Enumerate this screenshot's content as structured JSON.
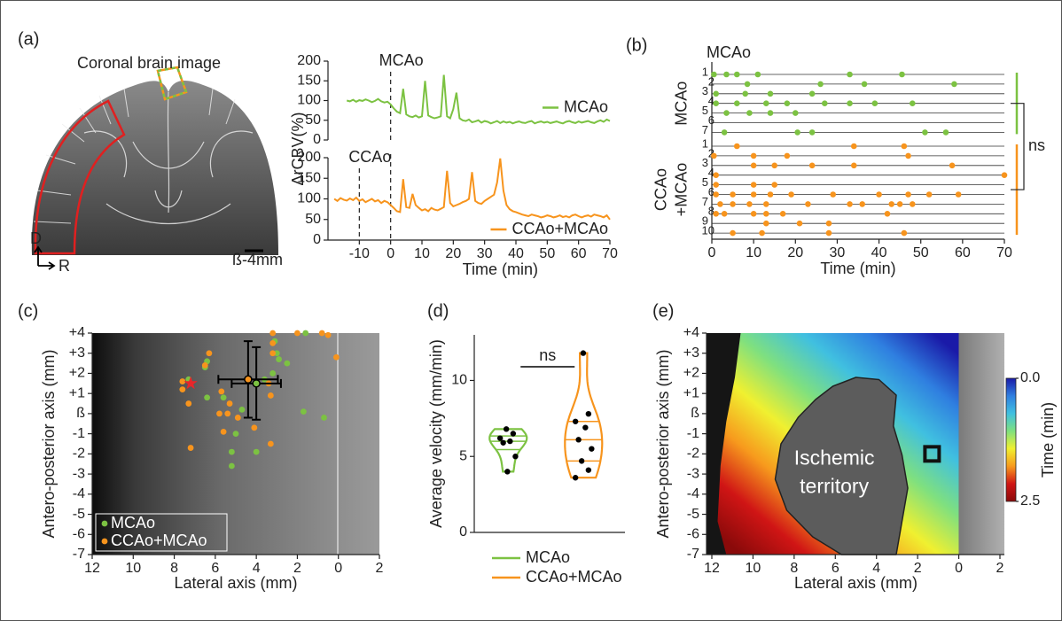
{
  "figure": {
    "panel_labels": [
      "(a)",
      "(b)",
      "(c)",
      "(d)",
      "(e)"
    ],
    "brain": {
      "title": "Coronal brain image",
      "dorsal": "D",
      "right": "R",
      "bregma": "ß-4mm"
    }
  },
  "chart_data": [
    {
      "type": "line",
      "y_label": "ΔrCBV(%)",
      "xlim": [
        -20,
        70
      ],
      "ylim": [
        0,
        200
      ],
      "yticks": [
        0,
        50,
        100,
        150,
        200
      ],
      "markers": [
        {
          "x": 0,
          "label": "MCAo"
        }
      ],
      "legend": "center right",
      "x": [
        -14,
        -13,
        -12,
        -11,
        -10,
        -9,
        -8,
        -7,
        -6,
        -5,
        -4,
        -3,
        -2,
        -1,
        0,
        1,
        2,
        3,
        4,
        5,
        6,
        7,
        8,
        9,
        10,
        11,
        12,
        13,
        14,
        15,
        16,
        17,
        18,
        19,
        20,
        21,
        22,
        23,
        24,
        25,
        26,
        27,
        28,
        29,
        30,
        31,
        32,
        33,
        34,
        35,
        36,
        37,
        38,
        39,
        40,
        41,
        42,
        43,
        44,
        45,
        46,
        47,
        48,
        49,
        50,
        51,
        52,
        53,
        54,
        55,
        56,
        57,
        58,
        59,
        60,
        61,
        62,
        63,
        64,
        65,
        66,
        67,
        68,
        69,
        70
      ],
      "series": [
        {
          "name": "MCAo",
          "color": "#7cc242",
          "values": [
            100,
            98,
            102,
            97,
            101,
            99,
            103,
            100,
            96,
            99,
            104,
            98,
            95,
            97,
            90,
            80,
            72,
            68,
            130,
            65,
            60,
            58,
            62,
            57,
            60,
            150,
            62,
            58,
            55,
            57,
            60,
            165,
            60,
            55,
            78,
            120,
            55,
            50,
            48,
            52,
            45,
            47,
            50,
            44,
            48,
            46,
            42,
            45,
            48,
            43,
            47,
            44,
            46,
            42,
            45,
            47,
            44,
            43,
            46,
            48,
            42,
            45,
            47,
            44,
            46,
            43,
            45,
            47,
            44,
            42,
            46,
            48,
            45,
            43,
            47,
            44,
            46,
            48,
            45,
            43,
            47,
            50,
            46,
            52,
            48
          ]
        }
      ]
    },
    {
      "type": "line",
      "x_label": "Time (min)",
      "xlim": [
        -20,
        70
      ],
      "xticks": [
        -10,
        0,
        10,
        20,
        30,
        40,
        50,
        60,
        70
      ],
      "ylim": [
        0,
        200
      ],
      "yticks": [
        0,
        50,
        100,
        150,
        200
      ],
      "markers": [
        {
          "x": -10,
          "label": "CCAo"
        },
        {
          "x": 0
        }
      ],
      "legend": "lower right",
      "x": [
        -18,
        -17,
        -16,
        -15,
        -14,
        -13,
        -12,
        -11,
        -10,
        -9,
        -8,
        -7,
        -6,
        -5,
        -4,
        -3,
        -2,
        -1,
        0,
        1,
        2,
        3,
        4,
        5,
        6,
        7,
        8,
        9,
        10,
        11,
        12,
        13,
        14,
        15,
        16,
        17,
        18,
        19,
        20,
        21,
        22,
        23,
        24,
        25,
        26,
        27,
        28,
        29,
        30,
        31,
        32,
        33,
        34,
        35,
        36,
        37,
        38,
        39,
        40,
        41,
        42,
        43,
        44,
        45,
        46,
        47,
        48,
        49,
        50,
        51,
        52,
        53,
        54,
        55,
        56,
        57,
        58,
        59,
        60,
        61,
        62,
        63,
        64,
        65,
        66,
        67,
        68,
        69,
        70
      ],
      "series": [
        {
          "name": "CCAo+MCAo",
          "color": "#f7941d",
          "values": [
            100,
            95,
            102,
            98,
            96,
            101,
            97,
            103,
            95,
            99,
            92,
            96,
            100,
            94,
            97,
            90,
            95,
            92,
            85,
            78,
            70,
            68,
            148,
            80,
            78,
            112,
            85,
            78,
            72,
            75,
            70,
            78,
            74,
            72,
            76,
            80,
            168,
            90,
            82,
            85,
            88,
            92,
            95,
            100,
            165,
            95,
            90,
            88,
            95,
            100,
            105,
            110,
            140,
            198,
            120,
            85,
            75,
            70,
            68,
            65,
            62,
            60,
            58,
            62,
            60,
            58,
            55,
            57,
            60,
            58,
            55,
            57,
            60,
            56,
            58,
            55,
            60,
            62,
            58,
            55,
            58,
            60,
            57,
            62,
            60,
            58,
            55,
            60,
            50
          ]
        }
      ]
    },
    {
      "type": "raster",
      "x_label": "Time (min)",
      "xlim": [
        0,
        70
      ],
      "xticks": [
        0,
        10,
        20,
        30,
        40,
        50,
        60,
        70
      ],
      "marker": {
        "x": 0,
        "label": "MCAo"
      },
      "stat": "ns",
      "groups": [
        {
          "name": [
            "MCAo"
          ],
          "color": "#7cc242",
          "rows": [
            {
              "label": "1",
              "times": [
                0.5,
                3.5,
                6,
                11,
                33,
                45.5
              ]
            },
            {
              "label": "2",
              "times": [
                8.5,
                26,
                36.5,
                58
              ]
            },
            {
              "label": "3",
              "times": [
                1,
                8,
                14,
                24
              ]
            },
            {
              "label": "4",
              "times": [
                1,
                6,
                13,
                18,
                27,
                33,
                39,
                48
              ]
            },
            {
              "label": "5",
              "times": [
                3.5,
                9,
                14,
                20
              ]
            },
            {
              "label": "6",
              "times": []
            },
            {
              "label": "7",
              "times": [
                3,
                20.5,
                24,
                51,
                56
              ]
            }
          ]
        },
        {
          "name": [
            "CCAo",
            "+MCAo"
          ],
          "color": "#f7941d",
          "rows": [
            {
              "label": "1",
              "times": [
                6,
                34,
                46
              ]
            },
            {
              "label": "2",
              "times": [
                0.5,
                10,
                18,
                47
              ]
            },
            {
              "label": "3",
              "times": [
                10,
                15,
                24,
                34,
                57.5
              ]
            },
            {
              "label": "4",
              "times": [
                1,
                70
              ]
            },
            {
              "label": "5",
              "times": [
                1,
                10,
                15
              ]
            },
            {
              "label": "6",
              "times": [
                1,
                5,
                10,
                14,
                19,
                29,
                40,
                47,
                52,
                59
              ]
            },
            {
              "label": "7",
              "times": [
                2,
                5,
                9,
                13,
                23,
                33,
                36,
                43,
                45,
                48
              ]
            },
            {
              "label": "8",
              "times": [
                1,
                3,
                10,
                13,
                17,
                42
              ]
            },
            {
              "label": "9",
              "times": [
                13,
                21,
                28
              ]
            },
            {
              "label": "10",
              "times": [
                5,
                12,
                28,
                46
              ]
            }
          ]
        }
      ]
    },
    {
      "type": "scatter",
      "x_label": "Lateral axis (mm)",
      "y_label": "Antero-posterior axis (mm)",
      "xlim": [
        12,
        -2
      ],
      "xticks": [
        12,
        10,
        8,
        6,
        4,
        2,
        0,
        {
          "value": -2,
          "label": "2"
        }
      ],
      "ylim": [
        4,
        -7
      ],
      "yticks": [
        {
          "value": 4,
          "label": "+4"
        },
        {
          "value": 3,
          "label": "+3"
        },
        {
          "value": 2,
          "label": "+2"
        },
        {
          "value": 1,
          "label": "+1"
        },
        {
          "value": 0,
          "label": "ß"
        },
        -1,
        -2,
        -3,
        -4,
        -5,
        -6,
        -7
      ],
      "legend": "lower left",
      "star": {
        "x": 7.2,
        "y": 1.5,
        "color": "#e8262a"
      },
      "series": [
        {
          "name": "MCAo",
          "color": "#7cc242",
          "x": [
            1.6,
            3.1,
            3.0,
            2.9,
            2.5,
            6.4,
            6.5,
            7.3,
            3.6,
            6.4,
            5.6,
            4.7,
            1.7,
            0.7,
            5.0,
            5.2,
            4.0,
            5.2,
            3.2
          ],
          "y": [
            4.0,
            3.6,
            3.0,
            2.7,
            2.5,
            2.6,
            2.3,
            1.7,
            1.7,
            0.8,
            0.8,
            0.2,
            0.1,
            -0.2,
            -1.0,
            -1.9,
            -1.9,
            -2.6,
            2.0
          ],
          "mean": {
            "x": 4.0,
            "y": 1.5,
            "x_err": 1.2,
            "y_err": 1.8
          }
        },
        {
          "name": "CCAo+MCAo",
          "color": "#f7941d",
          "x": [
            3.2,
            2.0,
            0.8,
            0.5,
            0.1,
            3.2,
            3.2,
            6.3,
            6.5,
            7.6,
            7.6,
            7.3,
            5.7,
            5.3,
            5.4,
            5.8,
            4.9,
            4.1,
            3.3,
            3.3,
            7.2,
            5.6,
            3.4
          ],
          "y": [
            4.0,
            4.0,
            4.0,
            3.9,
            2.8,
            3.5,
            3.0,
            3.0,
            2.4,
            1.6,
            1.2,
            0.5,
            1.1,
            0.5,
            0.0,
            0.0,
            -0.2,
            -0.7,
            0.9,
            -1.5,
            -1.7,
            -0.9,
            1.5
          ],
          "mean": {
            "x": 4.4,
            "y": 1.7,
            "x_err": 1.45,
            "y_err": 1.9
          }
        }
      ]
    },
    {
      "type": "violin",
      "y_label": "Average velocity (mm/min)",
      "ylim": [
        0,
        13
      ],
      "yticks": [
        0,
        5,
        10
      ],
      "stat": "ns",
      "series": [
        {
          "name": "MCAo",
          "color": "#7cc242",
          "values": [
            6.8,
            6.5,
            6.2,
            6.0,
            5.9,
            5.0,
            4.0
          ]
        },
        {
          "name": "CCAo+MCAo",
          "color": "#f7941d",
          "values": [
            11.8,
            7.8,
            7.3,
            6.9,
            6.1,
            5.5,
            4.7,
            4.1,
            3.6
          ]
        }
      ]
    },
    {
      "type": "heatmap",
      "x_label": "Lateral axis (mm)",
      "y_label": "Antero-posterior axis (mm)",
      "xlim": [
        12,
        -2
      ],
      "xticks": [
        12,
        10,
        8,
        6,
        4,
        2,
        0,
        {
          "value": -2,
          "label": "2"
        }
      ],
      "ylim": [
        4,
        -7
      ],
      "yticks": [
        {
          "value": 4,
          "label": "+4"
        },
        {
          "value": 3,
          "label": "+3"
        },
        {
          "value": 2,
          "label": "+2"
        },
        {
          "value": 1,
          "label": "+1"
        },
        {
          "value": 0,
          "label": "ß"
        },
        -1,
        -2,
        -3,
        -4,
        -5,
        -6,
        -7
      ],
      "annotation": [
        "Ischemic",
        "territory"
      ],
      "roi": {
        "x": 1.3,
        "y": -2
      },
      "colorbar": {
        "label": "Time (min)",
        "lim": [
          0,
          2.5
        ],
        "ticks": [
          {
            "value": 0,
            "label": "0.0"
          },
          {
            "value": 2.5,
            "label": "2.5"
          }
        ],
        "colors": [
          "#1a1aa8",
          "#2f7fe0",
          "#40c0e0",
          "#7fe07f",
          "#f0f030",
          "#f79a1d",
          "#d01515",
          "#8a0a0a"
        ]
      }
    }
  ]
}
